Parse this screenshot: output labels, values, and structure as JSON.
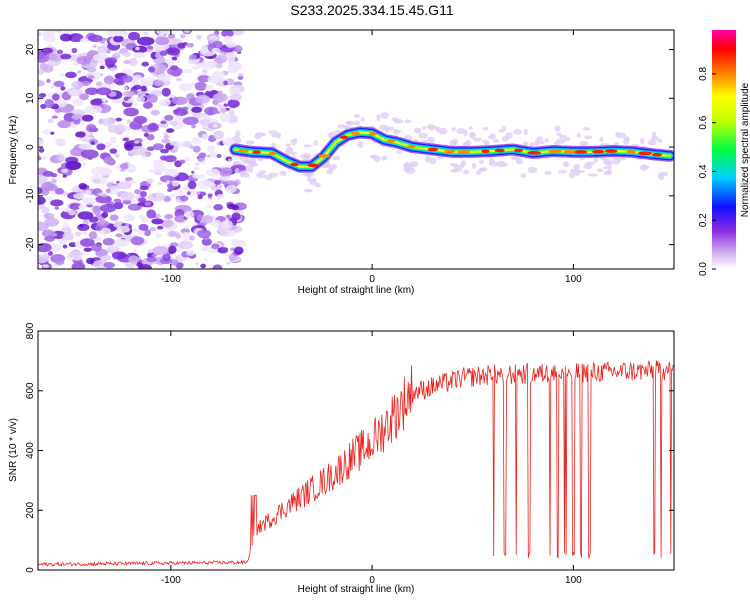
{
  "title": "S233.2025.334.15.45.G11",
  "chart_data": [
    {
      "type": "heatmap",
      "xlabel": "Height of straight line (km)",
      "ylabel": "Frequency (Hz)",
      "xlim": [
        -166,
        150
      ],
      "ylim": [
        -25,
        24
      ],
      "xticks": [
        -100,
        0,
        100
      ],
      "yticks": [
        -20,
        -10,
        0,
        10,
        20
      ],
      "colorbar": {
        "label": "Normalized spectral amplitude",
        "ticks": [
          "0.0",
          "0.2",
          "0.4",
          "0.6",
          "0.8"
        ],
        "tick_values": [
          0.0,
          0.2,
          0.4,
          0.6,
          0.8
        ],
        "range": [
          0,
          0.98
        ]
      },
      "noise_region_x": [
        -166,
        -68
      ],
      "ridge": {
        "x": [
          -68,
          -60,
          -50,
          -42,
          -36,
          -30,
          -24,
          -18,
          -12,
          -6,
          0,
          6,
          12,
          20,
          30,
          40,
          50,
          60,
          70,
          80,
          90,
          100,
          110,
          120,
          130,
          140,
          148
        ],
        "y": [
          -0.5,
          -1,
          -1.2,
          -3,
          -4,
          -4,
          -2,
          1,
          2.5,
          3,
          2.8,
          1.5,
          1,
          0,
          -0.5,
          -1,
          -1,
          -0.8,
          -0.5,
          -1.2,
          -0.8,
          -1,
          -1,
          -0.8,
          -1,
          -1.5,
          -1.8
        ]
      }
    },
    {
      "type": "line",
      "xlabel": "Height of straight line (km)",
      "ylabel": "SNR (10 * v/v)",
      "xlim": [
        -166,
        150
      ],
      "ylim": [
        0,
        800
      ],
      "xticks": [
        -100,
        0,
        100
      ],
      "yticks": [
        0,
        200,
        400,
        600,
        800
      ],
      "series": [
        {
          "name": "SNR",
          "color": "#e8231e",
          "envelope_x": [
            -166,
            -62,
            -58,
            -40,
            -20,
            -10,
            0,
            10,
            20,
            30,
            45,
            60,
            90,
            120,
            150
          ],
          "envelope_y": [
            18,
            25,
            130,
            220,
            310,
            370,
            420,
            500,
            590,
            610,
            640,
            650,
            655,
            660,
            665
          ]
        }
      ],
      "dropouts_x": [
        60,
        66,
        72,
        78,
        88,
        92,
        96,
        100,
        104,
        108,
        140,
        144,
        148
      ]
    }
  ]
}
